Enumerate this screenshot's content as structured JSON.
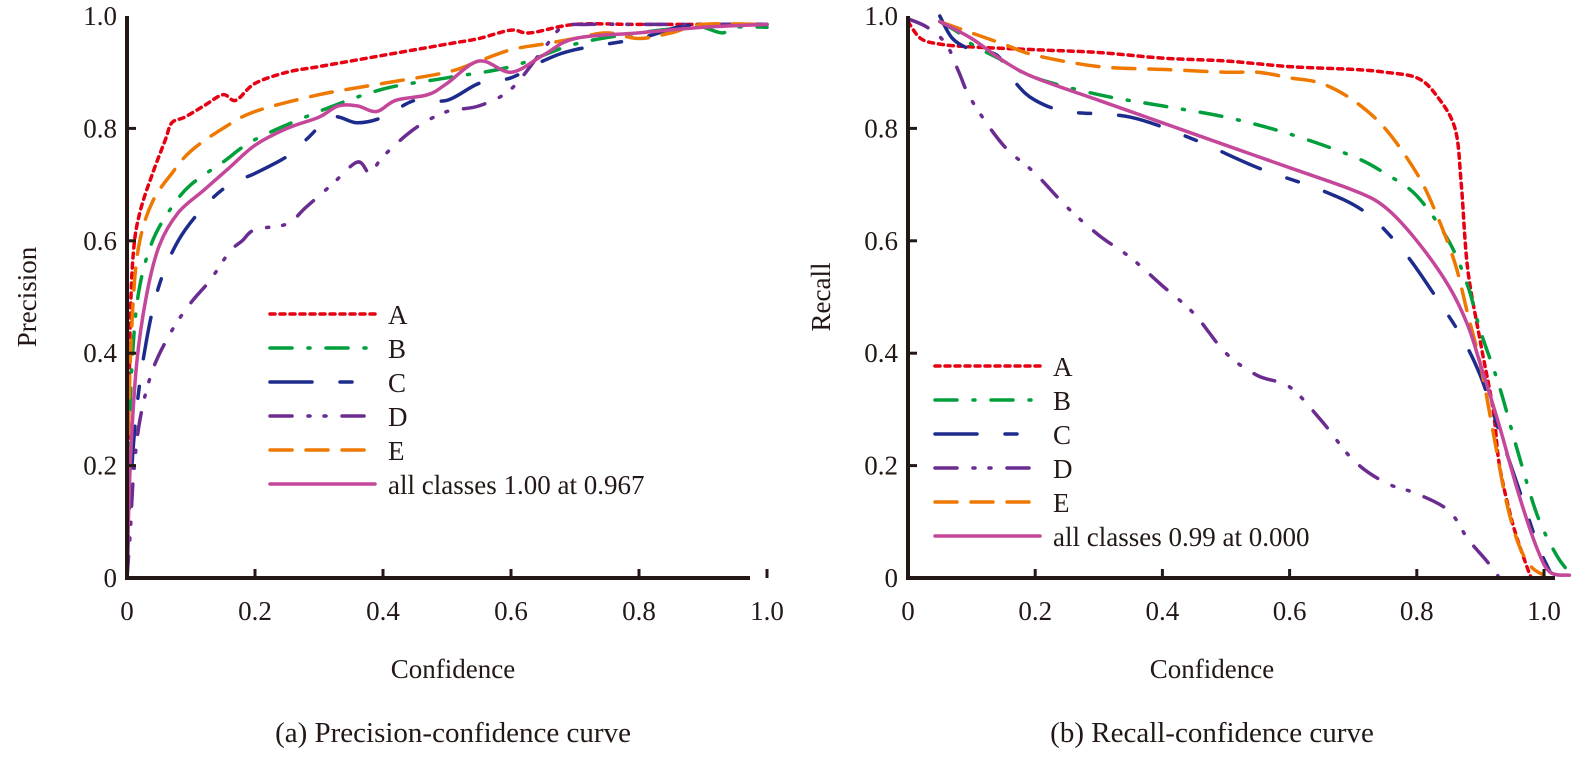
{
  "chart_data": [
    {
      "id": "precision",
      "type": "line",
      "caption": "(a) Precision-confidence curve",
      "xlabel": "Confidence",
      "ylabel": "Precision",
      "xlim": [
        0,
        1.0
      ],
      "ylim": [
        0,
        1.0
      ],
      "xticks": [
        "0",
        "0.2",
        "0.4",
        "0.6",
        "0.8",
        "1.0"
      ],
      "yticks": [
        "0",
        "0.2",
        "0.4",
        "0.6",
        "0.8",
        "1.0"
      ],
      "grid": false,
      "legend_position": "center-right",
      "series": [
        {
          "name": "A",
          "color": "#e60012",
          "dash": "dotted",
          "x": [
            0,
            0.002,
            0.005,
            0.01,
            0.02,
            0.04,
            0.06,
            0.07,
            0.09,
            0.12,
            0.15,
            0.17,
            0.2,
            0.25,
            0.3,
            0.4,
            0.5,
            0.55,
            0.6,
            0.63,
            0.7,
            0.8,
            0.9,
            1.0
          ],
          "y": [
            0,
            0.2,
            0.45,
            0.58,
            0.65,
            0.72,
            0.78,
            0.81,
            0.82,
            0.84,
            0.86,
            0.85,
            0.88,
            0.9,
            0.91,
            0.93,
            0.95,
            0.96,
            0.975,
            0.97,
            0.985,
            0.985,
            0.985,
            0.985
          ]
        },
        {
          "name": "B",
          "color": "#009f3c",
          "dash": "dash-dot",
          "x": [
            0,
            0.003,
            0.01,
            0.02,
            0.04,
            0.07,
            0.1,
            0.15,
            0.2,
            0.3,
            0.4,
            0.5,
            0.6,
            0.7,
            0.8,
            0.88,
            0.9,
            0.93,
            0.95,
            1.0
          ],
          "y": [
            0,
            0.25,
            0.42,
            0.52,
            0.6,
            0.66,
            0.7,
            0.74,
            0.78,
            0.83,
            0.87,
            0.89,
            0.91,
            0.95,
            0.97,
            0.98,
            0.98,
            0.97,
            0.98,
            0.98
          ]
        },
        {
          "name": "C",
          "color": "#1d2c8c",
          "dash": "long-dash",
          "x": [
            0,
            0.005,
            0.015,
            0.03,
            0.05,
            0.08,
            0.12,
            0.16,
            0.2,
            0.25,
            0.28,
            0.32,
            0.36,
            0.4,
            0.45,
            0.5,
            0.55,
            0.6,
            0.65,
            0.7,
            0.8,
            0.86,
            0.9,
            1.0
          ],
          "y": [
            0,
            0.15,
            0.3,
            0.42,
            0.52,
            0.6,
            0.66,
            0.7,
            0.72,
            0.75,
            0.78,
            0.82,
            0.81,
            0.82,
            0.85,
            0.85,
            0.88,
            0.89,
            0.92,
            0.94,
            0.96,
            0.98,
            0.985,
            0.985
          ]
        },
        {
          "name": "D",
          "color": "#6a2c91",
          "dash": "dash-dot-dot",
          "x": [
            0,
            0.005,
            0.01,
            0.02,
            0.04,
            0.07,
            0.1,
            0.13,
            0.16,
            0.18,
            0.2,
            0.25,
            0.28,
            0.32,
            0.36,
            0.38,
            0.4,
            0.45,
            0.5,
            0.55,
            0.6,
            0.65,
            0.68,
            0.72,
            0.8,
            0.9,
            1.0
          ],
          "y": [
            0,
            0.08,
            0.18,
            0.28,
            0.37,
            0.44,
            0.49,
            0.53,
            0.58,
            0.6,
            0.62,
            0.63,
            0.66,
            0.7,
            0.74,
            0.72,
            0.75,
            0.8,
            0.83,
            0.84,
            0.87,
            0.94,
            0.98,
            0.985,
            0.985,
            0.985,
            0.985
          ]
        },
        {
          "name": "E",
          "color": "#ee7800",
          "dash": "dashed",
          "x": [
            0,
            0.003,
            0.01,
            0.02,
            0.04,
            0.07,
            0.1,
            0.15,
            0.2,
            0.3,
            0.4,
            0.5,
            0.55,
            0.6,
            0.65,
            0.7,
            0.75,
            0.8,
            0.85,
            0.9,
            1.0
          ],
          "y": [
            0,
            0.3,
            0.5,
            0.6,
            0.67,
            0.72,
            0.76,
            0.8,
            0.83,
            0.86,
            0.88,
            0.9,
            0.92,
            0.94,
            0.95,
            0.96,
            0.97,
            0.96,
            0.97,
            0.985,
            0.985
          ]
        },
        {
          "name": "all classes 1.00 at 0.967",
          "color": "#c4479a",
          "dash": "solid",
          "x": [
            0,
            0.005,
            0.015,
            0.03,
            0.05,
            0.08,
            0.12,
            0.16,
            0.2,
            0.25,
            0.3,
            0.33,
            0.36,
            0.39,
            0.42,
            0.47,
            0.5,
            0.55,
            0.6,
            0.65,
            0.7,
            0.8,
            0.9,
            1.0
          ],
          "y": [
            0,
            0.2,
            0.38,
            0.5,
            0.59,
            0.65,
            0.69,
            0.73,
            0.77,
            0.8,
            0.82,
            0.84,
            0.84,
            0.83,
            0.85,
            0.86,
            0.88,
            0.92,
            0.9,
            0.93,
            0.96,
            0.97,
            0.98,
            0.985
          ]
        }
      ]
    },
    {
      "id": "recall",
      "type": "line",
      "caption": "(b) Recall-confidence curve",
      "xlabel": "Confidence",
      "ylabel": "Recall",
      "xlim": [
        0,
        1.0
      ],
      "ylim": [
        0,
        1.0
      ],
      "xticks": [
        "0",
        "0.2",
        "0.4",
        "0.6",
        "0.8",
        "1.0"
      ],
      "yticks": [
        "0",
        "0.2",
        "0.4",
        "0.6",
        "0.8",
        "1.0"
      ],
      "grid": false,
      "legend_position": "lower-left",
      "series": [
        {
          "name": "A",
          "color": "#e60012",
          "dash": "dotted",
          "x": [
            0,
            0.02,
            0.05,
            0.1,
            0.2,
            0.3,
            0.4,
            0.5,
            0.6,
            0.7,
            0.75,
            0.8,
            0.83,
            0.86,
            0.87,
            0.88,
            0.9,
            0.92,
            0.93,
            0.95,
            0.97,
            0.98
          ],
          "y": [
            0.99,
            0.96,
            0.95,
            0.945,
            0.94,
            0.935,
            0.925,
            0.92,
            0.91,
            0.905,
            0.9,
            0.89,
            0.86,
            0.8,
            0.7,
            0.55,
            0.42,
            0.3,
            0.2,
            0.1,
            0.03,
            0
          ]
        },
        {
          "name": "B",
          "color": "#009f3c",
          "dash": "dash-dot",
          "x": [
            0.05,
            0.08,
            0.1,
            0.15,
            0.2,
            0.3,
            0.4,
            0.5,
            0.6,
            0.7,
            0.75,
            0.8,
            0.85,
            0.88,
            0.9,
            0.93,
            0.96,
            0.99,
            1.02,
            1.04
          ],
          "y": [
            0.99,
            0.97,
            0.95,
            0.92,
            0.89,
            0.86,
            0.84,
            0.82,
            0.79,
            0.75,
            0.72,
            0.68,
            0.6,
            0.52,
            0.44,
            0.34,
            0.22,
            0.11,
            0.04,
            0.01
          ]
        },
        {
          "name": "C",
          "color": "#1d2c8c",
          "dash": "long-dash",
          "x": [
            0.05,
            0.07,
            0.1,
            0.14,
            0.17,
            0.2,
            0.25,
            0.35,
            0.45,
            0.55,
            0.65,
            0.72,
            0.78,
            0.83,
            0.87,
            0.9,
            0.93,
            0.96,
            0.99,
            1.01
          ],
          "y": [
            1.0,
            0.96,
            0.94,
            0.93,
            0.88,
            0.85,
            0.83,
            0.82,
            0.78,
            0.73,
            0.69,
            0.65,
            0.58,
            0.5,
            0.43,
            0.36,
            0.26,
            0.16,
            0.06,
            0.01
          ]
        },
        {
          "name": "D",
          "color": "#6a2c91",
          "dash": "dash-dot-dot",
          "x": [
            0,
            0.03,
            0.06,
            0.08,
            0.1,
            0.15,
            0.2,
            0.25,
            0.3,
            0.35,
            0.4,
            0.45,
            0.5,
            0.55,
            0.6,
            0.65,
            0.7,
            0.75,
            0.8,
            0.85,
            0.88,
            0.91,
            0.93
          ],
          "y": [
            0.995,
            0.98,
            0.95,
            0.9,
            0.85,
            0.77,
            0.72,
            0.66,
            0.61,
            0.57,
            0.52,
            0.47,
            0.4,
            0.36,
            0.34,
            0.28,
            0.21,
            0.17,
            0.15,
            0.12,
            0.07,
            0.03,
            0
          ]
        },
        {
          "name": "E",
          "color": "#ee7800",
          "dash": "dashed",
          "x": [
            0.05,
            0.1,
            0.15,
            0.2,
            0.3,
            0.4,
            0.5,
            0.55,
            0.6,
            0.65,
            0.7,
            0.75,
            0.8,
            0.83,
            0.86,
            0.88,
            0.9,
            0.92,
            0.94,
            0.96,
            0.98,
            1.0
          ],
          "y": [
            0.99,
            0.97,
            0.95,
            0.93,
            0.91,
            0.905,
            0.9,
            0.9,
            0.89,
            0.88,
            0.85,
            0.8,
            0.72,
            0.65,
            0.56,
            0.47,
            0.38,
            0.26,
            0.14,
            0.06,
            0.02,
            0.005
          ]
        },
        {
          "name": "all classes 0.99 at 0.000",
          "color": "#c4479a",
          "dash": "solid",
          "x": [
            0.05,
            0.1,
            0.15,
            0.2,
            0.3,
            0.4,
            0.5,
            0.6,
            0.7,
            0.75,
            0.8,
            0.85,
            0.88,
            0.9,
            0.93,
            0.96,
            0.99,
            1.01,
            1.04
          ],
          "y": [
            0.99,
            0.96,
            0.92,
            0.89,
            0.85,
            0.81,
            0.77,
            0.73,
            0.69,
            0.66,
            0.6,
            0.52,
            0.45,
            0.38,
            0.27,
            0.15,
            0.05,
            0.01,
            0.005
          ]
        }
      ]
    }
  ]
}
